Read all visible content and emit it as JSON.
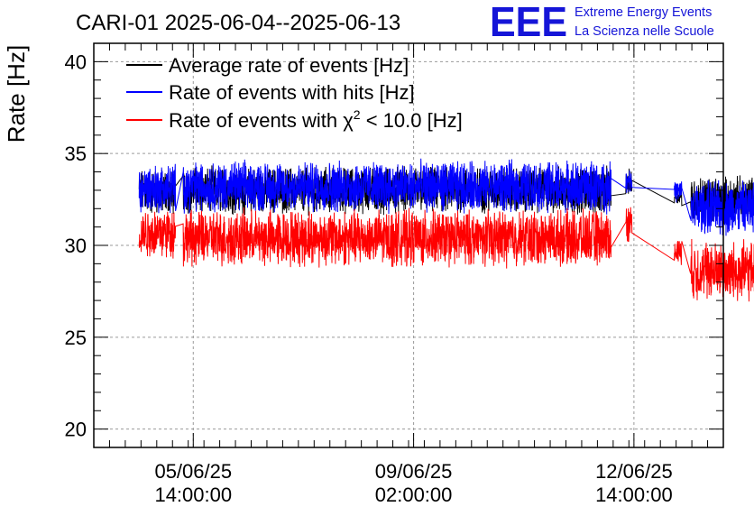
{
  "chart_data": {
    "type": "line",
    "title": "CARI-01 2025-06-04--2025-06-13",
    "logo": {
      "mark": "EEE",
      "line1": "Extreme Energy Events",
      "line2": "La Scienza nelle Scuole"
    },
    "xlabel": "",
    "ylabel": "Rate [Hz]",
    "ylim": [
      19,
      41
    ],
    "xlim_days": [
      0,
      10
    ],
    "y_ticks": [
      "20",
      "25",
      "30",
      "35",
      "40"
    ],
    "x_ticks": [
      {
        "day": 1.58,
        "date": "05/06/25",
        "time": "14:00:00"
      },
      {
        "day": 5.08,
        "date": "09/06/25",
        "time": "02:00:00"
      },
      {
        "day": 8.58,
        "date": "12/06/25",
        "time": "14:00:00"
      }
    ],
    "grid": true,
    "legend_position": "top-left",
    "series": [
      {
        "name": "Average rate of events [Hz]",
        "color": "#000000",
        "segments": [
          {
            "start": 0.72,
            "end": 1.3,
            "mean": 32.9,
            "noise": 1.0
          },
          {
            "start": 1.42,
            "end": 8.22,
            "mean": 33.0,
            "noise": 1.0
          },
          {
            "start": 8.45,
            "end": 8.55,
            "mean": 33.4,
            "noise": 0.6
          },
          {
            "start": 9.22,
            "end": 9.34,
            "mean": 32.7,
            "noise": 0.4
          },
          {
            "start": 9.48,
            "end": 10.53,
            "mean": 32.5,
            "noise": 1.0
          }
        ]
      },
      {
        "name": "Rate of events with hits [Hz]",
        "color": "#0000ff",
        "segments": [
          {
            "start": 0.72,
            "end": 1.3,
            "mean": 33.1,
            "noise": 1.1
          },
          {
            "start": 1.42,
            "end": 8.22,
            "mean": 33.2,
            "noise": 1.1
          },
          {
            "start": 8.45,
            "end": 8.55,
            "mean": 33.6,
            "noise": 0.6
          },
          {
            "start": 9.22,
            "end": 9.34,
            "mean": 32.9,
            "noise": 0.5
          },
          {
            "start": 9.48,
            "end": 10.53,
            "mean": 32.0,
            "noise": 1.2
          }
        ]
      },
      {
        "name": "Rate of events with χ² < 10.0 [Hz]",
        "legend_prefix": "Rate of events with ",
        "legend_chi": "χ",
        "legend_sup": "2",
        "legend_suffix": " < 10.0 [Hz]",
        "color": "#ff0000",
        "segments": [
          {
            "start": 0.72,
            "end": 1.3,
            "mean": 30.7,
            "noise": 1.1
          },
          {
            "start": 1.42,
            "end": 8.22,
            "mean": 30.4,
            "noise": 1.2
          },
          {
            "start": 8.45,
            "end": 8.55,
            "mean": 31.2,
            "noise": 0.8
          },
          {
            "start": 9.22,
            "end": 9.34,
            "mean": 29.7,
            "noise": 0.6
          },
          {
            "start": 9.48,
            "end": 10.53,
            "mean": 28.6,
            "noise": 1.3
          }
        ]
      }
    ]
  }
}
